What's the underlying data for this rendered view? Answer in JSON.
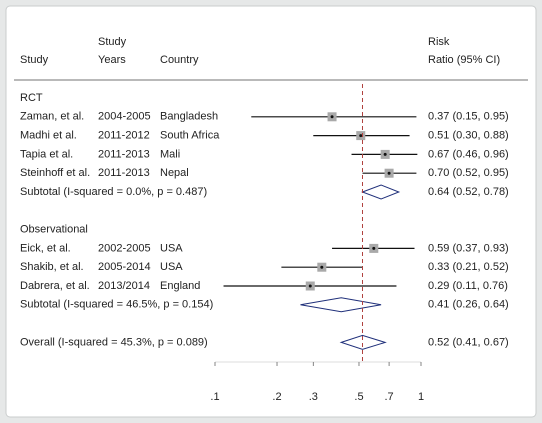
{
  "chart_data": {
    "type": "forest",
    "headers": {
      "study": "Study",
      "years_top": "Study",
      "years": "Years",
      "country": "Country",
      "risk_top": "Risk",
      "risk": "Ratio (95% CI)"
    },
    "groups": [
      {
        "name": "RCT",
        "studies": [
          {
            "study": "Zaman, et al.",
            "years": "2004-2005",
            "country": "Bangladesh",
            "rr": 0.37,
            "lo": 0.15,
            "hi": 0.95,
            "value_label": "0.37 (0.15, 0.95)"
          },
          {
            "study": "Madhi et al.",
            "years": "2011-2012",
            "country": "South Africa",
            "rr": 0.51,
            "lo": 0.3,
            "hi": 0.88,
            "value_label": "0.51 (0.30, 0.88)"
          },
          {
            "study": "Tapia et al.",
            "years": "2011-2013",
            "country": "Mali",
            "rr": 0.67,
            "lo": 0.46,
            "hi": 0.96,
            "value_label": "0.67 (0.46, 0.96)"
          },
          {
            "study": "Steinhoff et al.",
            "years": "2011-2013",
            "country": "Nepal",
            "rr": 0.7,
            "lo": 0.52,
            "hi": 0.95,
            "value_label": "0.70 (0.52, 0.95)"
          }
        ],
        "subtotal": {
          "label": "Subtotal  (I-squared = 0.0%, p = 0.487)",
          "rr": 0.64,
          "lo": 0.52,
          "hi": 0.78,
          "value_label": "0.64 (0.52, 0.78)"
        }
      },
      {
        "name": "Observational",
        "studies": [
          {
            "study": "Eick, et al.",
            "years": "2002-2005",
            "country": "USA",
            "rr": 0.59,
            "lo": 0.37,
            "hi": 0.93,
            "value_label": "0.59 (0.37, 0.93)"
          },
          {
            "study": "Shakib, et al.",
            "years": "2005-2014",
            "country": "USA",
            "rr": 0.33,
            "lo": 0.21,
            "hi": 0.52,
            "value_label": "0.33 (0.21, 0.52)"
          },
          {
            "study": "Dabrera, et al.",
            "years": "2013/2014",
            "country": "England",
            "rr": 0.29,
            "lo": 0.11,
            "hi": 0.76,
            "value_label": "0.29 (0.11, 0.76)"
          }
        ],
        "subtotal": {
          "label": "Subtotal  (I-squared = 46.5%, p = 0.154)",
          "rr": 0.41,
          "lo": 0.26,
          "hi": 0.64,
          "value_label": "0.41 (0.26, 0.64)"
        }
      }
    ],
    "overall": {
      "label": "Overall  (I-squared = 45.3%, p = 0.089)",
      "rr": 0.52,
      "lo": 0.41,
      "hi": 0.67,
      "value_label": "0.52 (0.41, 0.67)"
    },
    "xscale": "log",
    "xlim": [
      0.1,
      1
    ],
    "xticks": [
      {
        "value": 0.1,
        "label": ".1"
      },
      {
        "value": 0.2,
        "label": ".2"
      },
      {
        "value": 0.3,
        "label": ".3"
      },
      {
        "value": 0.5,
        "label": ".5"
      },
      {
        "value": 0.7,
        "label": ".7"
      },
      1
    ],
    "box_color": "#a9a9a9",
    "diamond_color": "#1f2f7a",
    "reference_color": "#b0423f"
  }
}
